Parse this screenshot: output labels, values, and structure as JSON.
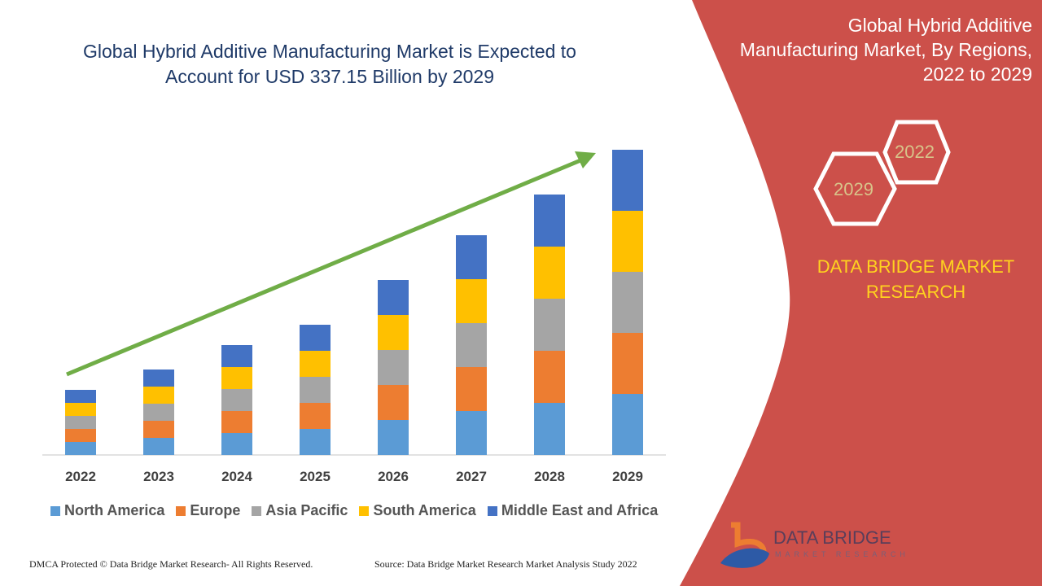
{
  "header": {
    "title_line1": "Global Hybrid Additive Manufacturing Market is Expected to",
    "title_line2": "Account for USD 337.15 Billion by 2029"
  },
  "side_panel": {
    "title_line1": "Global Hybrid Additive",
    "title_line2": "Manufacturing Market, By Regions,",
    "title_line3": "2022 to 2029",
    "hex_start": "2022",
    "hex_end": "2029",
    "brand_line1": "DATA BRIDGE MARKET",
    "brand_line2": "RESEARCH",
    "logo_text": "DATA BRIDGE",
    "logo_subtext": "MARKET RESEARCH",
    "panel_color": "#cc504a"
  },
  "footer": {
    "copyright": "DMCA Protected © Data Bridge Market Research- All Rights Reserved.",
    "source": "Source: Data Bridge Market Research Market Analysis Study 2022"
  },
  "chart_data": {
    "type": "bar",
    "stacked": true,
    "title": "Global Hybrid Additive Manufacturing Market is Expected to Account for USD 337.15 Billion by 2029",
    "categories": [
      "2022",
      "2023",
      "2024",
      "2025",
      "2026",
      "2027",
      "2028",
      "2029"
    ],
    "series": [
      {
        "name": "North America",
        "color": "#5b9bd5",
        "values": [
          16,
          21,
          27,
          32,
          43,
          54,
          64,
          75
        ]
      },
      {
        "name": "Europe",
        "color": "#ed7d31",
        "values": [
          16,
          21,
          27,
          32,
          43,
          54,
          64,
          75
        ]
      },
      {
        "name": "Asia Pacific",
        "color": "#a5a5a5",
        "values": [
          16,
          21,
          27,
          32,
          43,
          54,
          64,
          75
        ]
      },
      {
        "name": "South America",
        "color": "#ffc000",
        "values": [
          16,
          21,
          27,
          32,
          43,
          54,
          64,
          75
        ]
      },
      {
        "name": "Middle East and Africa",
        "color": "#4472c4",
        "values": [
          16,
          21,
          27,
          32,
          43,
          54,
          64,
          75
        ]
      }
    ],
    "trend_arrow_color": "#70ad47",
    "y_axis_shown": false,
    "grid": false,
    "legend_position": "bottom"
  }
}
